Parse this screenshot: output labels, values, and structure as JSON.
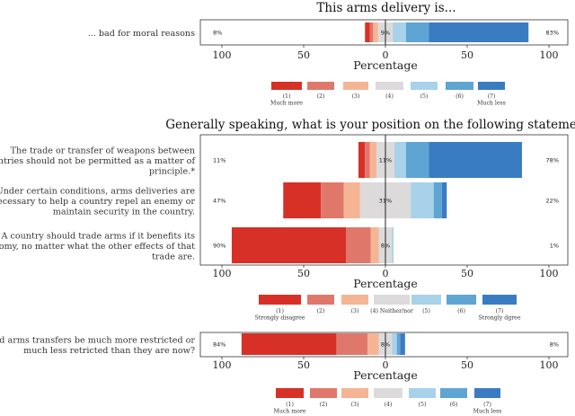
{
  "colors": {
    "much_more": "#d73027",
    "c2": "#e0776b",
    "c3": "#f5b595",
    "neutral": "#dcdada",
    "c5": "#a8d1ea",
    "c6": "#5ea5d4",
    "much_less": "#3a7cc2"
  },
  "chart_data": [
    {
      "type": "bar",
      "subtype": "diverging-stacked",
      "title": "This arms delivery is...",
      "xlabel": "Percentage",
      "xlim": [
        -100,
        100
      ],
      "x_tick_labels": [
        "100",
        "50",
        "0",
        "50",
        "100"
      ],
      "categories": [
        "... bad for moral reasons"
      ],
      "series": [
        {
          "name": "(1)\nMuch more",
          "values": [
            3
          ]
        },
        {
          "name": "(2)",
          "values": [
            2
          ]
        },
        {
          "name": "(3)",
          "values": [
            3
          ]
        },
        {
          "name": "(4)",
          "values": [
            9
          ]
        },
        {
          "name": "(5)",
          "values": [
            8
          ]
        },
        {
          "name": "(6)",
          "values": [
            14
          ]
        },
        {
          "name": "(7)\nMuch less",
          "values": [
            61
          ]
        }
      ],
      "left_labels": [
        "8%"
      ],
      "center_labels": [
        "9%"
      ],
      "right_labels": [
        "83%"
      ],
      "legend": [
        "(1)\nMuch more",
        "(2)",
        "(3)",
        "(4)",
        "(5)",
        "(6)",
        "(7)\nMuch less"
      ]
    },
    {
      "type": "bar",
      "subtype": "diverging-stacked",
      "title": "Generally speaking, what is your position on the following statements...",
      "xlabel": "Percentage",
      "xlim": [
        -100,
        100
      ],
      "x_tick_labels": [
        "100",
        "50",
        "0",
        "50",
        "100"
      ],
      "categories": [
        "The trade or transfer of weapons between\ncountries should not be permitted as a matter of\nprinciple.*",
        "Under certain conditions, arms deliveries are\nnecessary to help a country repel an enemy or\nmaintain security in the country.",
        "A country should trade arms if it benefits its\neconomy, no matter what the other effects of that\ntrade are."
      ],
      "series": [
        {
          "name": "(1)\nStrongly disagree",
          "values": [
            4,
            23,
            70
          ]
        },
        {
          "name": "(2)",
          "values": [
            3,
            14,
            15
          ]
        },
        {
          "name": "(3)",
          "values": [
            4,
            10,
            5
          ]
        },
        {
          "name": "(4) Neither/nor",
          "values": [
            11,
            31,
            8
          ]
        },
        {
          "name": "(5)",
          "values": [
            7,
            14,
            1
          ]
        },
        {
          "name": "(6)",
          "values": [
            14,
            5,
            0
          ]
        },
        {
          "name": "(7)\nStrongly dgree",
          "values": [
            57,
            3,
            0
          ]
        }
      ],
      "left_labels": [
        "11%",
        "47%",
        "90%"
      ],
      "center_labels": [
        "11%",
        "31%",
        "8%"
      ],
      "right_labels": [
        "78%",
        "22%",
        "1%"
      ],
      "legend": [
        "(1)\nStrongly disagree",
        "(2)",
        "(3)",
        "(4) Neither/nor",
        "(5)",
        "(6)",
        "(7)\nStrongly dgree"
      ]
    },
    {
      "type": "bar",
      "subtype": "diverging-stacked",
      "title": "",
      "xlabel": "Percentage",
      "xlim": [
        -100,
        100
      ],
      "x_tick_labels": [
        "100",
        "50",
        "0",
        "50",
        "100"
      ],
      "categories": [
        "Should arms transfers be much more restricted or\nmuch less retricted than they are now?"
      ],
      "series": [
        {
          "name": "(1)\nMuch more",
          "values": [
            58
          ]
        },
        {
          "name": "(2)",
          "values": [
            19
          ]
        },
        {
          "name": "(3)",
          "values": [
            7
          ]
        },
        {
          "name": "(4)",
          "values": [
            8
          ]
        },
        {
          "name": "(5)",
          "values": [
            3
          ]
        },
        {
          "name": "(6)",
          "values": [
            2
          ]
        },
        {
          "name": "(7)\nMuch less",
          "values": [
            3
          ]
        }
      ],
      "left_labels": [
        "84%"
      ],
      "center_labels": [
        "8%"
      ],
      "right_labels": [
        "8%"
      ],
      "legend": [
        "(1)\nMuch more",
        "(2)",
        "(3)",
        "(4)",
        "(5)",
        "(6)",
        "(7)\nMuch less"
      ]
    }
  ]
}
